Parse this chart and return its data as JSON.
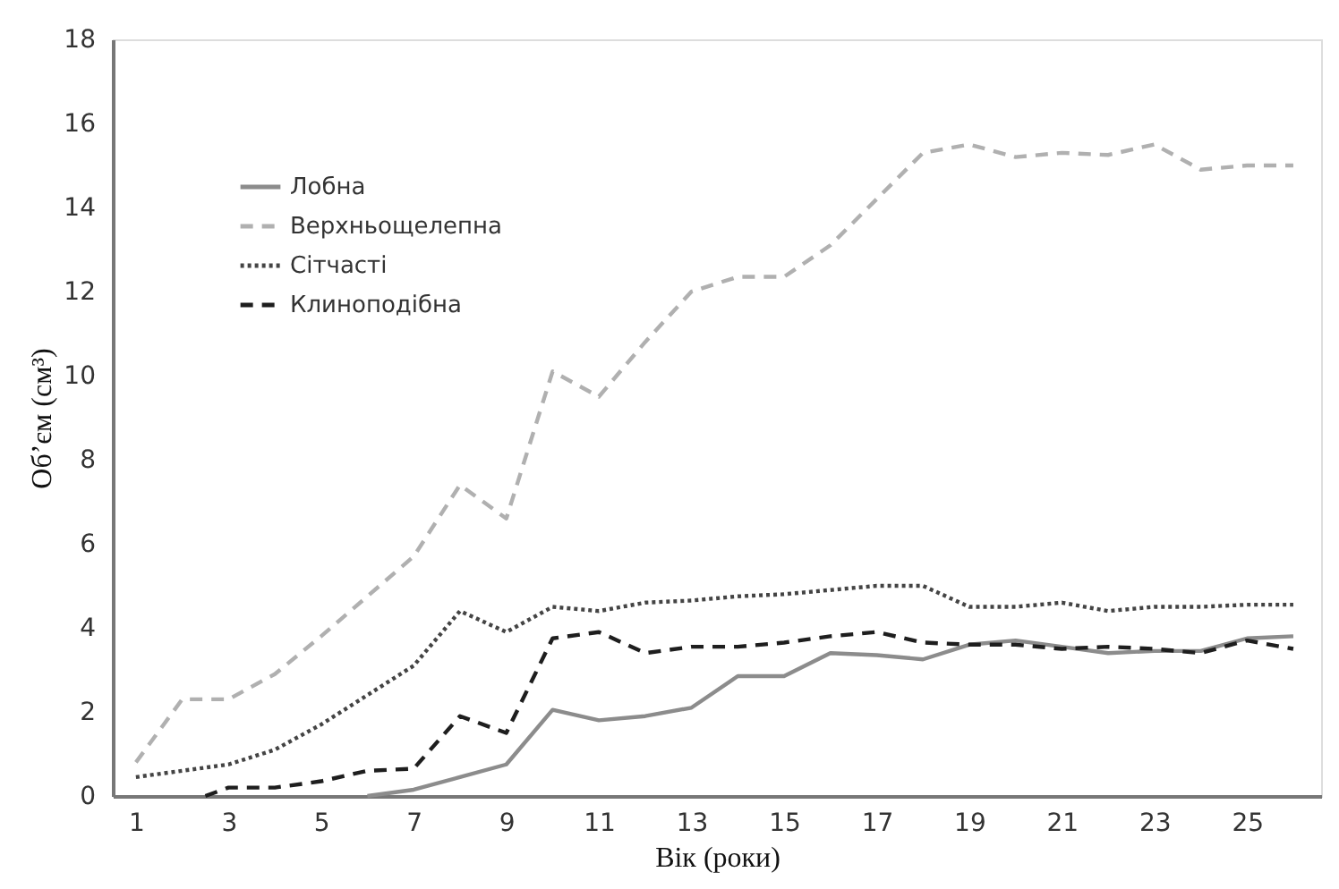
{
  "chart_data": {
    "type": "line",
    "xlabel": "Вік (роки)",
    "ylabel": "Об’єм (см³)",
    "xlim": [
      0.5,
      26.6
    ],
    "xticks": [
      1,
      3,
      5,
      7,
      9,
      11,
      13,
      15,
      17,
      19,
      21,
      23,
      25
    ],
    "ylim": [
      0,
      18
    ],
    "yticks": [
      0,
      2,
      4,
      6,
      8,
      10,
      12,
      14,
      16,
      18
    ],
    "grid": false,
    "legend": "top left",
    "series": [
      {
        "name": "Лобна",
        "color": "#8c8c8c",
        "line_style": "solid",
        "x": [
          6,
          7,
          8,
          9,
          10,
          11,
          12,
          13,
          14,
          15,
          16,
          17,
          18,
          19,
          20,
          21,
          22,
          23,
          24,
          25,
          26
        ],
        "values": [
          0,
          0.15,
          0.45,
          0.75,
          2.05,
          1.8,
          1.9,
          2.1,
          2.85,
          2.85,
          3.4,
          3.35,
          3.25,
          3.6,
          3.7,
          3.55,
          3.4,
          3.45,
          3.45,
          3.75,
          3.8
        ]
      },
      {
        "name": "Верхньощелепна",
        "color": "#b0b0b0",
        "line_style": "dashed",
        "x": [
          1,
          2,
          3,
          4,
          5,
          6,
          7,
          8,
          9,
          10,
          11,
          12,
          13,
          14,
          15,
          16,
          17,
          18,
          19,
          20,
          21,
          22,
          23,
          24,
          25,
          26
        ],
        "values": [
          0.8,
          2.3,
          2.3,
          2.9,
          3.8,
          4.75,
          5.7,
          7.4,
          6.6,
          10.1,
          9.5,
          10.8,
          12.0,
          12.35,
          12.35,
          13.1,
          14.2,
          15.3,
          15.5,
          15.2,
          15.3,
          15.25,
          15.5,
          14.9,
          15.0,
          15.0
        ]
      },
      {
        "name": "Сітчасті",
        "color": "#444444",
        "line_style": "dotted",
        "x": [
          1,
          2,
          3,
          4,
          5,
          6,
          7,
          8,
          9,
          10,
          11,
          12,
          13,
          14,
          15,
          16,
          17,
          18,
          19,
          20,
          21,
          22,
          23,
          24,
          25,
          26
        ],
        "values": [
          0.45,
          0.6,
          0.75,
          1.1,
          1.7,
          2.4,
          3.1,
          4.4,
          3.9,
          4.5,
          4.4,
          4.6,
          4.65,
          4.75,
          4.8,
          4.9,
          5.0,
          5.0,
          4.5,
          4.5,
          4.6,
          4.4,
          4.5,
          4.5,
          4.55,
          4.55
        ]
      },
      {
        "name": "Клиноподібна",
        "color": "#1e1e1e",
        "line_style": "dashed",
        "x": [
          2.5,
          3,
          4,
          5,
          6,
          7,
          8,
          9,
          10,
          11,
          12,
          13,
          14,
          15,
          16,
          17,
          18,
          19,
          20,
          21,
          22,
          23,
          24,
          25,
          26
        ],
        "values": [
          0,
          0.2,
          0.2,
          0.35,
          0.6,
          0.65,
          1.9,
          1.5,
          3.75,
          3.9,
          3.4,
          3.55,
          3.55,
          3.65,
          3.8,
          3.9,
          3.65,
          3.6,
          3.6,
          3.5,
          3.55,
          3.5,
          3.4,
          3.7,
          3.5
        ]
      }
    ]
  }
}
